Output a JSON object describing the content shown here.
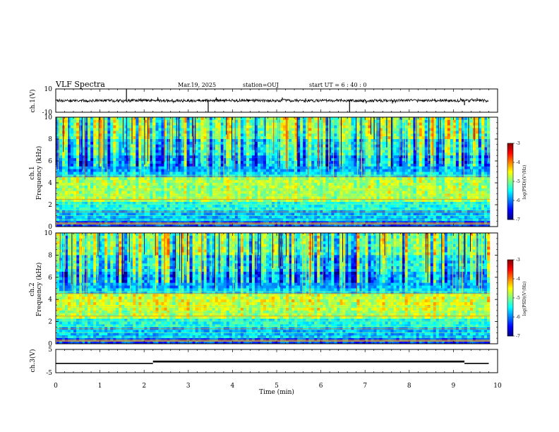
{
  "header": {
    "title": "VLF Spectra",
    "date": "Mar.19, 2025",
    "station": "station=OUJ",
    "start": "start  UT =   6 : 40 : 0"
  },
  "chart_data": [
    {
      "type": "line",
      "ylabel": "ch.1(V)",
      "ylim": [
        -10,
        10
      ],
      "yticks": [
        "10",
        "-10"
      ],
      "baseline": 0,
      "x_range": [
        0,
        9.8
      ],
      "spikes": [
        {
          "x": 1.6,
          "y": 10
        },
        {
          "x": 3.45,
          "y": -10
        },
        {
          "x": 6.65,
          "y": -10
        },
        {
          "x": 9.25,
          "y": -4
        }
      ]
    },
    {
      "type": "heatmap",
      "ylabel_line1": "ch.1",
      "ylabel_line2": "Frequency (kHz)",
      "ylim": [
        0,
        10
      ],
      "yticks": [
        "0",
        "2",
        "4",
        "6",
        "8",
        "10"
      ],
      "colorbar": {
        "range": [
          -7,
          -3
        ],
        "ticks": [
          "-3",
          "-4",
          "-5",
          "-6",
          "-7"
        ],
        "label": "log(PSD)(V²/Hz)"
      }
    },
    {
      "type": "heatmap",
      "ylabel_line1": "ch.2",
      "ylabel_line2": "Frequency (kHz)",
      "ylim": [
        0,
        10
      ],
      "yticks": [
        "0",
        "2",
        "4",
        "6",
        "8",
        "10"
      ],
      "colorbar": {
        "range": [
          -7,
          -3
        ],
        "ticks": [
          "-3",
          "-4",
          "-5",
          "-6",
          "-7"
        ],
        "label": "log(PSD)(V²/Hz)"
      }
    },
    {
      "type": "line",
      "ylabel": "ch.3(V)",
      "ylim": [
        -5,
        5
      ],
      "yticks": [
        "5",
        "-5"
      ],
      "segments": [
        {
          "x": [
            0,
            2.2
          ],
          "y": -1
        },
        {
          "x": [
            2.2,
            9.25
          ],
          "y": -0.2
        },
        {
          "x": [
            9.25,
            9.8
          ],
          "y": -1
        }
      ]
    }
  ],
  "xaxis": {
    "label": "Time (min)",
    "ticks": [
      "0",
      "1",
      "2",
      "3",
      "4",
      "5",
      "6",
      "7",
      "8",
      "9",
      "10"
    ]
  }
}
